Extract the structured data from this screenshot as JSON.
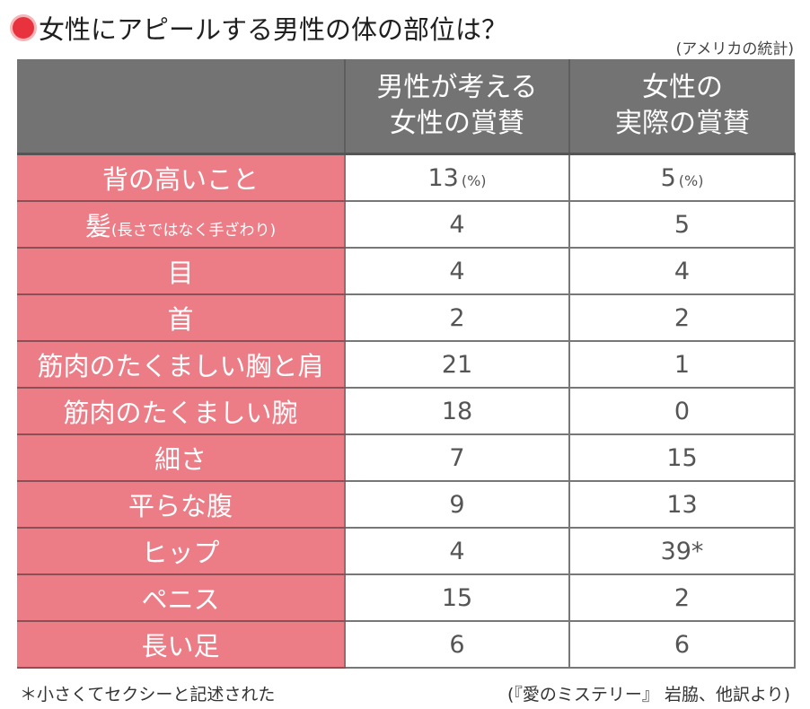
{
  "title": "女性にアピールする男性の体の部位は？",
  "source_note": "(アメリカの統計)",
  "table": {
    "headers": [
      "",
      {
        "line1": "男性が考える",
        "line2": "女性の賞賛"
      },
      {
        "line1": "女性の",
        "line2": "実際の賞賛"
      }
    ],
    "unit": "(%)",
    "rows": [
      {
        "label": "背の高いこと",
        "sub": "",
        "men_think": "13",
        "women_actual": "5",
        "show_unit": true
      },
      {
        "label": "髪",
        "sub": "(長さではなく手ざわり)",
        "men_think": "4",
        "women_actual": "5"
      },
      {
        "label": "目",
        "sub": "",
        "men_think": "4",
        "women_actual": "4"
      },
      {
        "label": "首",
        "sub": "",
        "men_think": "2",
        "women_actual": "2"
      },
      {
        "label": "筋肉のたくましい胸と肩",
        "sub": "",
        "men_think": "21",
        "women_actual": "1"
      },
      {
        "label": "筋肉のたくましい腕",
        "sub": "",
        "men_think": "18",
        "women_actual": "0"
      },
      {
        "label": "細さ",
        "sub": "",
        "men_think": "7",
        "women_actual": "15"
      },
      {
        "label": "平らな腹",
        "sub": "",
        "men_think": "9",
        "women_actual": "13"
      },
      {
        "label": "ヒップ",
        "sub": "",
        "men_think": "4",
        "women_actual": "39*"
      },
      {
        "label": "ペニス",
        "sub": "",
        "men_think": "15",
        "women_actual": "2"
      },
      {
        "label": "長い足",
        "sub": "",
        "men_think": "6",
        "women_actual": "6"
      }
    ]
  },
  "footnote": "＊小さくてセクシーと記述された",
  "citation": "(『愛のミステリー』 岩脇、他訳より)",
  "colors": {
    "header_bg": "#737373",
    "label_bg": "#ec7c86",
    "bullet": "#e8323d"
  }
}
